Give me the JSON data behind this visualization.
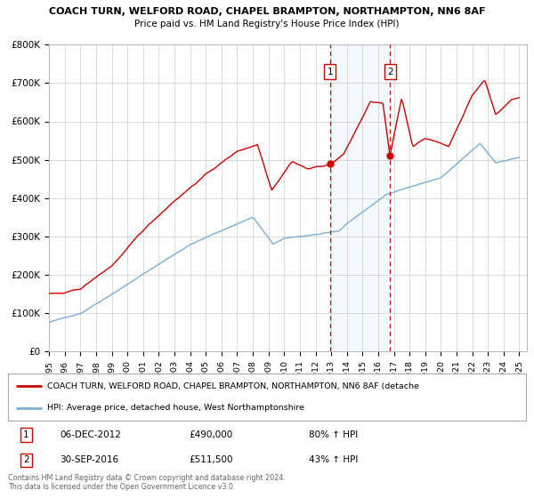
{
  "title1": "COACH TURN, WELFORD ROAD, CHAPEL BRAMPTON, NORTHAMPTON, NN6 8AF",
  "title2": "Price paid vs. HM Land Registry's House Price Index (HPI)",
  "ylim": [
    0,
    800000
  ],
  "yticks": [
    0,
    100000,
    200000,
    300000,
    400000,
    500000,
    600000,
    700000,
    800000
  ],
  "ytick_labels": [
    "£0",
    "£100K",
    "£200K",
    "£300K",
    "£400K",
    "£500K",
    "£600K",
    "£700K",
    "£800K"
  ],
  "xlim_start": 1995.0,
  "xlim_end": 2025.5,
  "marker1_x": 2012.92,
  "marker1_y": 490000,
  "marker2_x": 2016.75,
  "marker2_y": 511500,
  "vline1_x": 2012.92,
  "vline2_x": 2016.75,
  "shade_color": "#ddeeff",
  "legend_line1": "COACH TURN, WELFORD ROAD, CHAPEL BRAMPTON, NORTHAMPTON, NN6 8AF (detache",
  "legend_line2": "HPI: Average price, detached house, West Northamptonshire",
  "table_row1": [
    "1",
    "06-DEC-2012",
    "£490,000",
    "80% ↑ HPI"
  ],
  "table_row2": [
    "2",
    "30-SEP-2016",
    "£511,500",
    "43% ↑ HPI"
  ],
  "footer1": "Contains HM Land Registry data © Crown copyright and database right 2024.",
  "footer2": "This data is licensed under the Open Government Licence v3.0.",
  "red_color": "#cc0000",
  "blue_color": "#7aaed6",
  "background_chart": "#ffffff",
  "background_fig": "#ffffff",
  "grid_color": "#cccccc"
}
